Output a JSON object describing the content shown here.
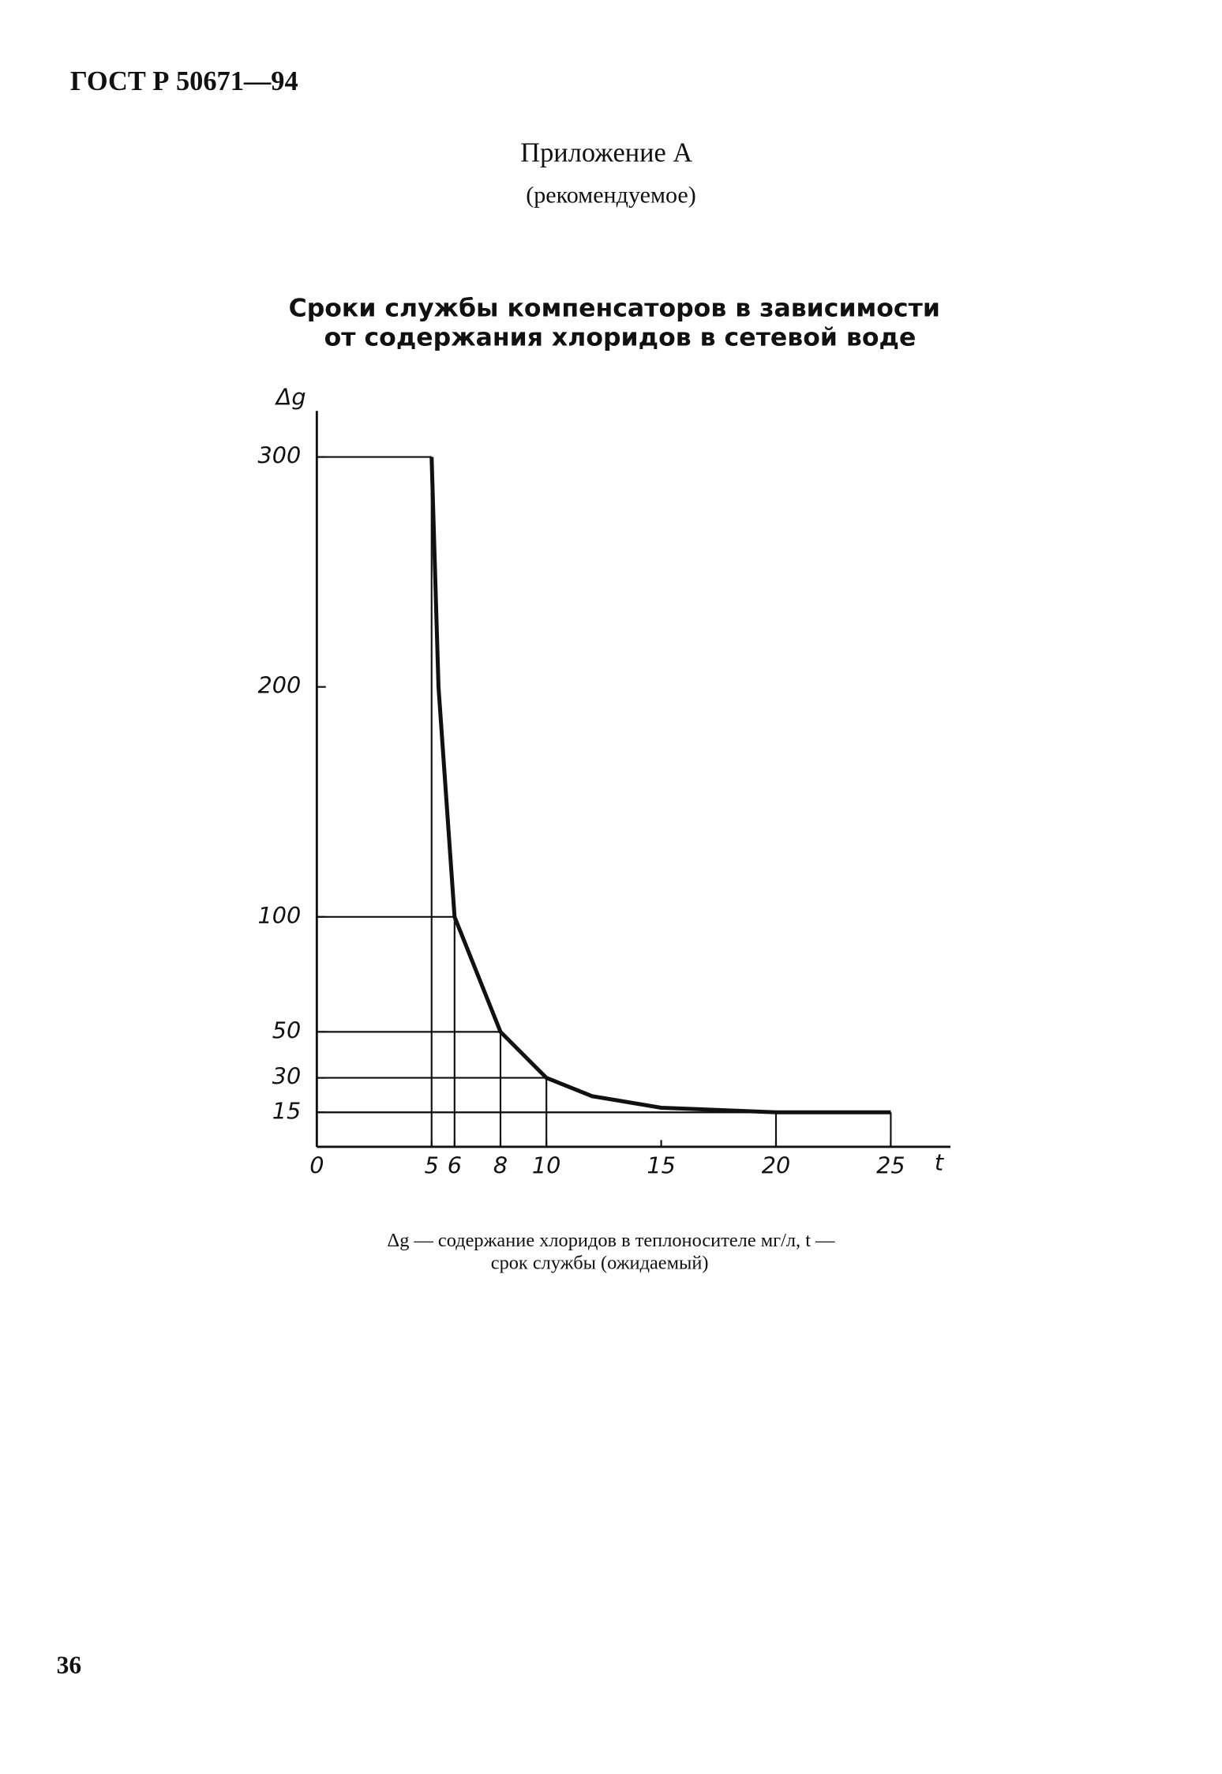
{
  "header": "ГОСТ Р 50671—94",
  "appendix": {
    "title": "Приложение А",
    "note": "(рекомендуемое)"
  },
  "chart_data": {
    "type": "line",
    "title": [
      "Сроки службы компенсаторов в зависимости",
      "от содержания хлоридов в сетевой воде"
    ],
    "y_label": "Δg",
    "x_label": "t",
    "series": [
      {
        "color": "#111111",
        "x": [
          5,
          5.3,
          6,
          8,
          10,
          12,
          15,
          20,
          25
        ],
        "values": [
          300,
          200,
          100,
          50,
          30,
          22,
          17,
          15,
          15
        ]
      }
    ],
    "xlim": [
      0,
      27.5
    ],
    "xticks": [
      0,
      5,
      6,
      8,
      10,
      15,
      20,
      25
    ],
    "ylim": [
      0,
      320
    ],
    "yticks": [
      15,
      30,
      50,
      100,
      200,
      300
    ]
  },
  "caption": [
    "Δg — содержание хлоридов в теплоносителе мг/л, t —",
    "срок службы (ожидаемый)"
  ],
  "page_number": "36"
}
